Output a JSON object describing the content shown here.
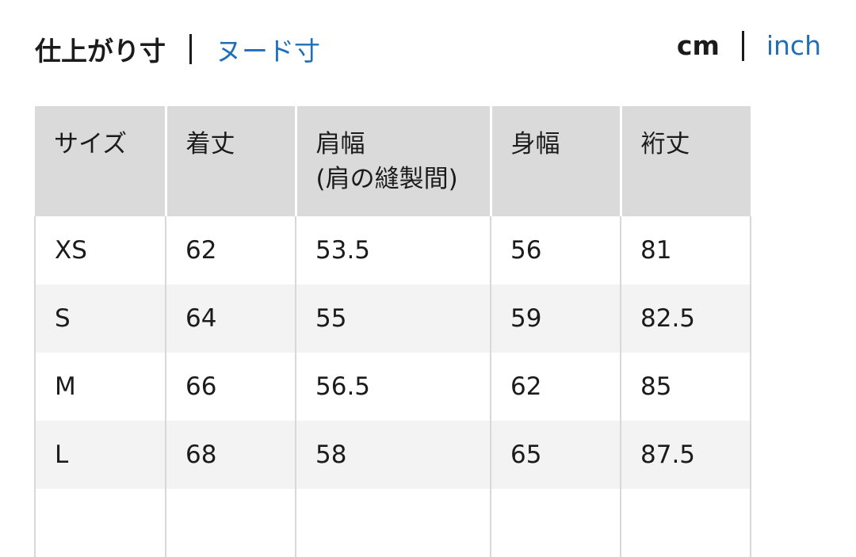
{
  "tabs": {
    "active": "仕上がり寸",
    "other": "ヌード寸"
  },
  "units": {
    "active": "cm",
    "other": "inch"
  },
  "table": {
    "headers": [
      "サイズ",
      "着丈",
      "肩幅\n(肩の縫製間)",
      "身幅",
      "裄丈"
    ],
    "header_lines": {
      "shoulder_1": "肩幅",
      "shoulder_2": "(肩の縫製間)"
    },
    "rows": [
      [
        "XS",
        "62",
        "53.5",
        "56",
        "81"
      ],
      [
        "S",
        "64",
        "55",
        "59",
        "82.5"
      ],
      [
        "M",
        "66",
        "56.5",
        "62",
        "85"
      ],
      [
        "L",
        "68",
        "58",
        "65",
        "87.5"
      ],
      [
        "",
        "",
        "",
        "",
        ""
      ]
    ]
  },
  "colors": {
    "link": "#1f6fb8",
    "header_bg": "#dadada",
    "stripe_bg": "#f3f3f3"
  }
}
